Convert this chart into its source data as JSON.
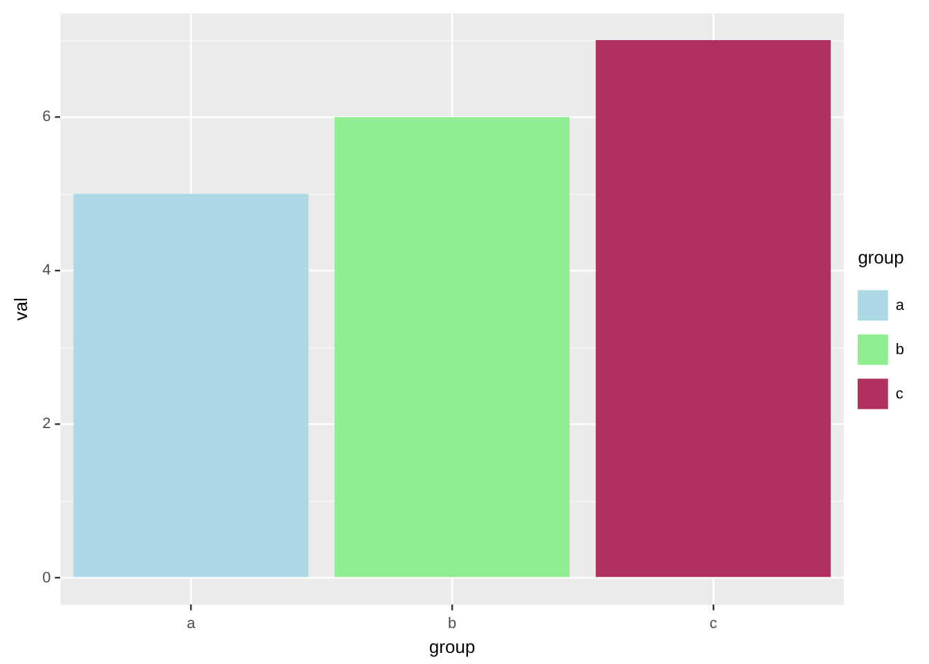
{
  "chart_data": {
    "type": "bar",
    "xlabel": "group",
    "ylabel": "val",
    "legend_title": "group",
    "categories": [
      "a",
      "b",
      "c"
    ],
    "series": [
      {
        "name": "a",
        "color": "#add8e6",
        "values": [
          5,
          null,
          null
        ]
      },
      {
        "name": "b",
        "color": "#90ee90",
        "values": [
          null,
          6,
          null
        ]
      },
      {
        "name": "c",
        "color": "#b03060",
        "values": [
          null,
          null,
          7
        ]
      }
    ],
    "ylim": [
      -0.35,
      7.35
    ],
    "yticks": [
      0,
      2,
      4,
      6
    ],
    "grid": true,
    "legend": "right"
  }
}
